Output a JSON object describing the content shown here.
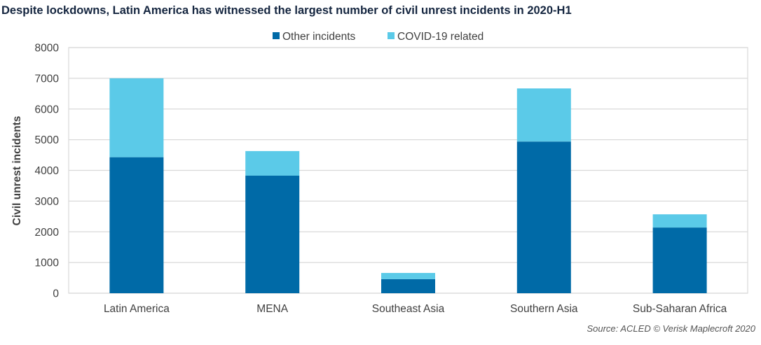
{
  "chart_data": {
    "type": "bar",
    "stacked": true,
    "title": "Despite lockdowns, Latin America has witnessed the largest number of civil unrest incidents in 2020-H1",
    "xlabel": "",
    "ylabel": "Civil unrest incidents",
    "ylim": [
      0,
      8000
    ],
    "yticks": [
      0,
      1000,
      2000,
      3000,
      4000,
      5000,
      6000,
      7000,
      8000
    ],
    "grid": true,
    "legend_position": "top",
    "categories": [
      "Latin America",
      "MENA",
      "Southeast Asia",
      "Southern Asia",
      "Sub-Saharan Africa"
    ],
    "series": [
      {
        "name": "Other incidents",
        "color": "#006aa7",
        "values": [
          4430,
          3830,
          460,
          4940,
          2140
        ]
      },
      {
        "name": "COVID-19 related",
        "color": "#5bcae8",
        "values": [
          2570,
          800,
          200,
          1730,
          430
        ]
      }
    ],
    "source": "Source: ACLED  © Verisk Maplecroft 2020"
  }
}
